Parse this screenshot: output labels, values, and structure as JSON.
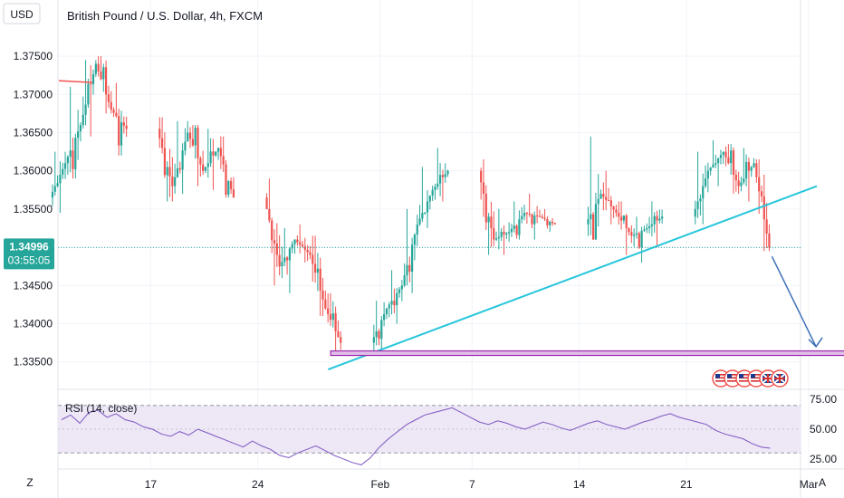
{
  "header": {
    "currency_button": "USD",
    "title": "British Pound / U.S. Dollar, 4h, FXCM"
  },
  "footer": {
    "z_button": "Z",
    "a_button": "A"
  },
  "colors": {
    "up": "#26a69a",
    "down": "#ef5350",
    "trendline": "#26c6da",
    "support": "#9c27b0",
    "support_fill": "#e1bee7",
    "arrow": "#3d6fb6",
    "rsi_line": "#7e57c2",
    "rsi_band": "#ede7f6",
    "price_tag": "#26a69a"
  },
  "icons": [
    "us-flag-icon",
    "us-flag-icon",
    "us-flag-icon",
    "us-flag-icon",
    "uk-flag-icon",
    "uk-flag-icon"
  ],
  "chart_data": {
    "type": "candlestick",
    "title": "British Pound / U.S. Dollar, 4h, FXCM",
    "price_axis": {
      "unit": "USD",
      "ticks": [
        "1.37500",
        "1.37000",
        "1.36500",
        "1.36000",
        "1.35500",
        "1.35000",
        "1.34500",
        "1.34000",
        "1.33500"
      ],
      "range": [
        1.332,
        1.3788
      ]
    },
    "time_axis": {
      "ticks": [
        "17",
        "24",
        "Feb",
        "7",
        "14",
        "21",
        "Mar"
      ]
    },
    "last_price": "1.34996",
    "countdown": "03:55:05",
    "daily_ohlc": [
      {
        "date": "Jan 11",
        "open": 1.3565,
        "high": 1.3625,
        "low": 1.3545,
        "close": 1.361
      },
      {
        "date": "Jan 12",
        "open": 1.361,
        "high": 1.371,
        "low": 1.359,
        "close": 1.366
      },
      {
        "date": "Jan 13",
        "open": 1.366,
        "high": 1.3745,
        "low": 1.3645,
        "close": 1.374
      },
      {
        "date": "Jan 14",
        "open": 1.374,
        "high": 1.375,
        "low": 1.3675,
        "close": 1.368
      },
      {
        "date": "Jan 15",
        "open": 1.368,
        "high": 1.3715,
        "low": 1.362,
        "close": 1.3655
      },
      {
        "date": "Jan 18",
        "open": 1.3655,
        "high": 1.367,
        "low": 1.356,
        "close": 1.358
      },
      {
        "date": "Jan 19",
        "open": 1.358,
        "high": 1.3665,
        "low": 1.357,
        "close": 1.365
      },
      {
        "date": "Jan 20",
        "open": 1.365,
        "high": 1.366,
        "low": 1.358,
        "close": 1.36
      },
      {
        "date": "Jan 21",
        "open": 1.36,
        "high": 1.3655,
        "low": 1.3575,
        "close": 1.363
      },
      {
        "date": "Jan 22",
        "open": 1.363,
        "high": 1.3645,
        "low": 1.3565,
        "close": 1.3565
      },
      {
        "date": "Jan 25",
        "open": 1.3565,
        "high": 1.359,
        "low": 1.345,
        "close": 1.3475
      },
      {
        "date": "Jan 26",
        "open": 1.3475,
        "high": 1.3525,
        "low": 1.344,
        "close": 1.351
      },
      {
        "date": "Jan 27",
        "open": 1.351,
        "high": 1.353,
        "low": 1.348,
        "close": 1.349
      },
      {
        "date": "Jan 28",
        "open": 1.349,
        "high": 1.3515,
        "low": 1.341,
        "close": 1.342
      },
      {
        "date": "Jan 29",
        "open": 1.342,
        "high": 1.344,
        "low": 1.336,
        "close": 1.3375
      },
      {
        "date": "Feb 01",
        "open": 1.3375,
        "high": 1.343,
        "low": 1.3365,
        "close": 1.342
      },
      {
        "date": "Feb 02",
        "open": 1.342,
        "high": 1.347,
        "low": 1.34,
        "close": 1.345
      },
      {
        "date": "Feb 03",
        "open": 1.345,
        "high": 1.355,
        "low": 1.344,
        "close": 1.353
      },
      {
        "date": "Feb 04",
        "open": 1.353,
        "high": 1.3605,
        "low": 1.3525,
        "close": 1.3575
      },
      {
        "date": "Feb 05",
        "open": 1.3575,
        "high": 1.363,
        "low": 1.356,
        "close": 1.36
      },
      {
        "date": "Feb 08",
        "open": 1.36,
        "high": 1.3615,
        "low": 1.349,
        "close": 1.351
      },
      {
        "date": "Feb 09",
        "open": 1.351,
        "high": 1.355,
        "low": 1.349,
        "close": 1.352
      },
      {
        "date": "Feb 10",
        "open": 1.352,
        "high": 1.356,
        "low": 1.351,
        "close": 1.3545
      },
      {
        "date": "Feb 11",
        "open": 1.3545,
        "high": 1.357,
        "low": 1.351,
        "close": 1.354
      },
      {
        "date": "Feb 12",
        "open": 1.354,
        "high": 1.355,
        "low": 1.352,
        "close": 1.353
      },
      {
        "date": "Feb 15",
        "open": 1.353,
        "high": 1.3645,
        "low": 1.351,
        "close": 1.357
      },
      {
        "date": "Feb 16",
        "open": 1.357,
        "high": 1.36,
        "low": 1.353,
        "close": 1.3545
      },
      {
        "date": "Feb 17",
        "open": 1.3545,
        "high": 1.356,
        "low": 1.349,
        "close": 1.3515
      },
      {
        "date": "Feb 18",
        "open": 1.3515,
        "high": 1.354,
        "low": 1.348,
        "close": 1.3525
      },
      {
        "date": "Feb 19",
        "open": 1.3525,
        "high": 1.356,
        "low": 1.35,
        "close": 1.354
      },
      {
        "date": "Feb 22",
        "open": 1.354,
        "high": 1.3625,
        "low": 1.353,
        "close": 1.36
      },
      {
        "date": "Feb 23",
        "open": 1.36,
        "high": 1.364,
        "low": 1.358,
        "close": 1.3625
      },
      {
        "date": "Feb 24",
        "open": 1.3625,
        "high": 1.3635,
        "low": 1.357,
        "close": 1.358
      },
      {
        "date": "Feb 25",
        "open": 1.358,
        "high": 1.363,
        "low": 1.356,
        "close": 1.361
      },
      {
        "date": "Feb 26",
        "open": 1.361,
        "high": 1.3615,
        "low": 1.3495,
        "close": 1.34996
      }
    ],
    "drawings": {
      "trendline": {
        "from": [
          "Jan 28",
          1.334
        ],
        "to": [
          "Mar 02",
          1.358
        ]
      },
      "support_zone": {
        "from": "Jan 29",
        "to": "Mar 03",
        "low": 1.3355,
        "high": 1.3362
      },
      "forecast_arrow": {
        "from": [
          "Feb 26",
          1.3488
        ],
        "to": [
          "Mar 01",
          1.337
        ]
      },
      "red_level": {
        "from": "Jan 11",
        "to": "Jan 12",
        "value": 1.3718
      }
    },
    "rsi": {
      "label": "RSI (14, close)",
      "ticks": [
        "75.00",
        "50.00",
        "25.00"
      ],
      "range": [
        18,
        82
      ],
      "levels": [
        70,
        30
      ],
      "values": [
        58,
        62,
        55,
        64,
        66,
        60,
        63,
        58,
        56,
        52,
        50,
        46,
        44,
        48,
        45,
        50,
        47,
        44,
        41,
        38,
        35,
        40,
        36,
        33,
        28,
        26,
        30,
        33,
        36,
        32,
        28,
        25,
        22,
        20,
        26,
        35,
        42,
        48,
        54,
        58,
        62,
        64,
        66,
        68,
        64,
        60,
        56,
        54,
        57,
        55,
        52,
        50,
        53,
        56,
        54,
        51,
        49,
        52,
        55,
        57,
        54,
        52,
        50,
        53,
        56,
        58,
        61,
        63,
        60,
        58,
        56,
        54,
        49,
        46,
        44,
        42,
        38,
        35,
        34
      ]
    }
  }
}
